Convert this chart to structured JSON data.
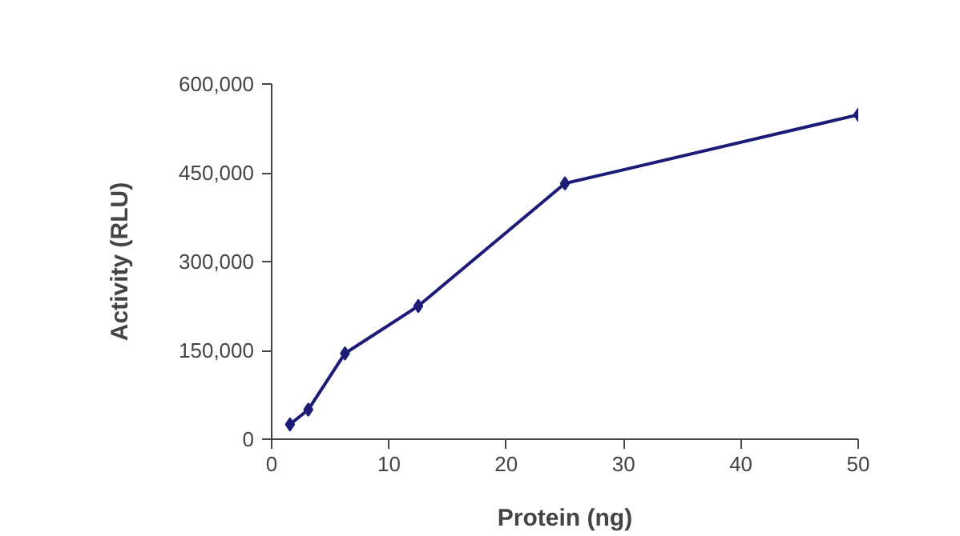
{
  "chart_data": {
    "type": "line",
    "xlabel": "Protein (ng)",
    "ylabel": "Activity (RLU)",
    "x": [
      1.5625,
      3.125,
      6.25,
      12.5,
      25,
      50
    ],
    "series": [
      {
        "color": "#1c1c78",
        "values": [
          25000,
          50000,
          145000,
          225000,
          432000,
          548000
        ]
      }
    ],
    "xlim": [
      0,
      50
    ],
    "xticks": [
      0,
      10,
      20,
      30,
      40,
      50
    ],
    "ylim": [
      0,
      600000
    ],
    "yticks": [
      0,
      {
        "value": 150000,
        "label": "150,000"
      },
      {
        "value": 300000,
        "label": "300,000"
      },
      {
        "value": 450000,
        "label": "450,000"
      },
      {
        "value": 600000,
        "label": "600,000"
      }
    ],
    "grid": false,
    "marker": "diamond",
    "line_style": "solid"
  }
}
